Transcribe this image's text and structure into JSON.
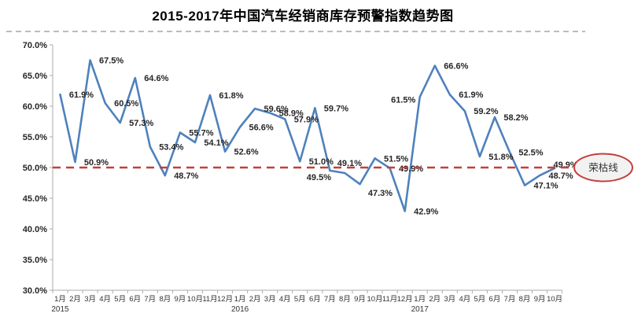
{
  "chart_data": {
    "type": "line",
    "title": "2015-2017年中国汽车经销商库存预警指数趋势图",
    "categories": [
      "1月",
      "2月",
      "3月",
      "4月",
      "5月",
      "6月",
      "7月",
      "8月",
      "9月",
      "10月",
      "11月",
      "12月",
      "1月",
      "2月",
      "3月",
      "4月",
      "5月",
      "6月",
      "7月",
      "8月",
      "9月",
      "10月",
      "11月",
      "12月",
      "1月",
      "2月",
      "3月",
      "4月",
      "5月",
      "6月",
      "7月",
      "8月",
      "9月",
      "10月"
    ],
    "year_row": [
      {
        "label": "2015",
        "month_index": 0
      },
      {
        "label": "2016",
        "month_index": 12
      },
      {
        "label": "2017",
        "month_index": 24
      }
    ],
    "values": [
      61.9,
      50.9,
      67.5,
      60.5,
      57.3,
      64.6,
      53.4,
      48.7,
      55.7,
      54.1,
      61.8,
      52.6,
      56.6,
      59.6,
      58.9,
      57.9,
      51.0,
      59.7,
      49.5,
      49.1,
      47.3,
      51.5,
      49.9,
      42.9,
      61.5,
      66.6,
      61.9,
      59.2,
      51.8,
      58.2,
      52.5,
      47.1,
      48.7,
      49.9
    ],
    "data_label_suffix": "%",
    "y_axis": {
      "min": 30,
      "max": 70,
      "step": 5,
      "tick_labels": [
        "70.0%",
        "65.0%",
        "60.0%",
        "55.0%",
        "50.0%",
        "45.0%",
        "40.0%",
        "35.0%",
        "30.0%"
      ]
    },
    "threshold_line": {
      "value": 50,
      "label": "荣枯线"
    },
    "layout": {
      "grid": false,
      "legend": "none",
      "markers": "none",
      "line_style": "straight"
    },
    "colors": {
      "series": "#4F81BD",
      "threshold": "#C2403B",
      "divider": "#BCBCBC",
      "axis": "#ABABAB",
      "label_text": "#262626",
      "axis_text": "#333333",
      "badge_fill": "#F2F2F2"
    }
  }
}
